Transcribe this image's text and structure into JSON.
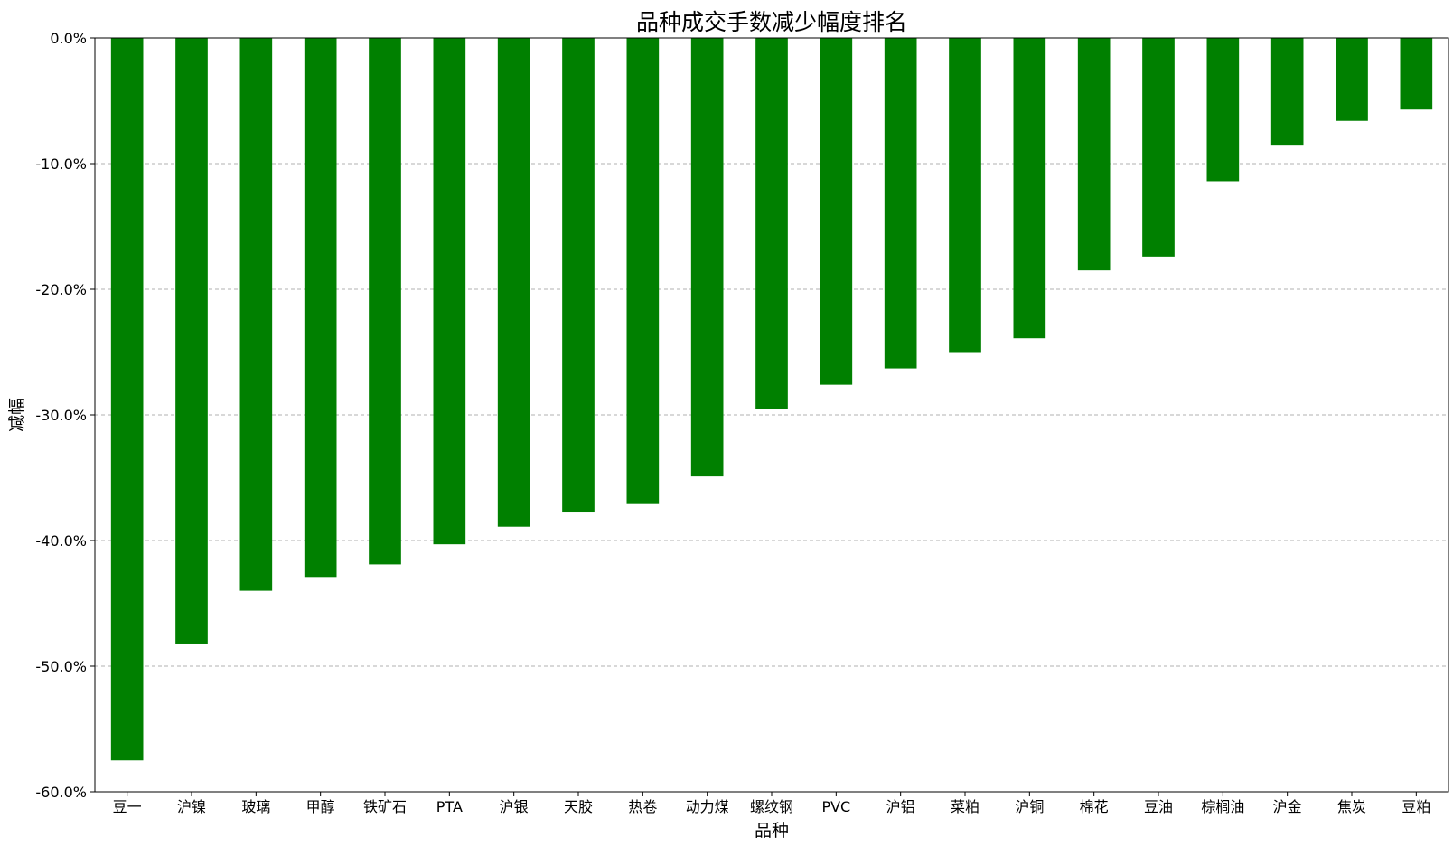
{
  "chart_data": {
    "type": "bar",
    "title": "品种成交手数减少幅度排名",
    "xlabel": "品种",
    "ylabel": "减幅",
    "categories": [
      "豆一",
      "沪镍",
      "玻璃",
      "甲醇",
      "铁矿石",
      "PTA",
      "沪银",
      "天胶",
      "热卷",
      "动力煤",
      "螺纹钢",
      "PVC",
      "沪铝",
      "菜粕",
      "沪铜",
      "棉花",
      "豆油",
      "棕榈油",
      "沪金",
      "焦炭",
      "豆粕"
    ],
    "values": [
      -57.5,
      -48.2,
      -44.0,
      -42.9,
      -41.9,
      -40.3,
      -38.9,
      -37.7,
      -37.1,
      -34.9,
      -29.5,
      -27.6,
      -26.3,
      -25.0,
      -23.9,
      -18.5,
      -17.4,
      -11.4,
      -8.5,
      -6.6,
      -5.7
    ],
    "ylim": [
      -60,
      0
    ],
    "yticks": [
      0,
      -10,
      -20,
      -30,
      -40,
      -50,
      -60
    ],
    "ytick_labels": [
      "0.0%",
      "-10.0%",
      "-20.0%",
      "-30.0%",
      "-40.0%",
      "-50.0%",
      "-60.0%"
    ],
    "grid": "horizontal dashed",
    "bar_color": "#008000",
    "grid_color": "#b0b0b0"
  }
}
